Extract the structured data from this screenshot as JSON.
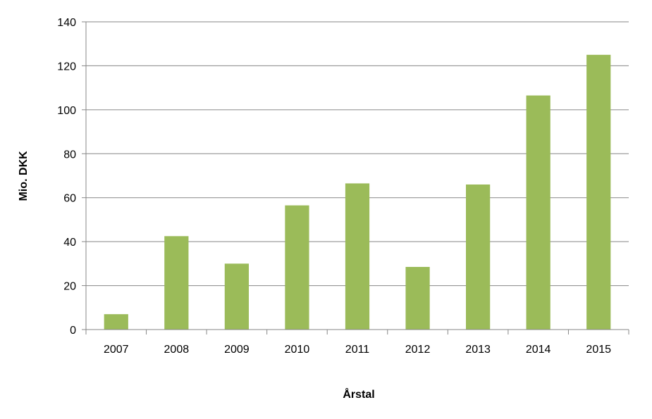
{
  "chart_data": {
    "type": "bar",
    "title": "",
    "xlabel": "Årstal",
    "ylabel": "Mio. DKK",
    "categories": [
      "2007",
      "2008",
      "2009",
      "2010",
      "2011",
      "2012",
      "2013",
      "2014",
      "2015"
    ],
    "values": [
      7,
      42.5,
      30,
      56.5,
      66.5,
      28.5,
      66,
      106.5,
      125
    ],
    "ylim": [
      0,
      140
    ],
    "yticks": [
      "0",
      "20",
      "40",
      "60",
      "80",
      "100",
      "120",
      "140"
    ],
    "grid": true,
    "legend": "none",
    "bar_color": "#9bbb59",
    "grid_color": "#878787"
  }
}
